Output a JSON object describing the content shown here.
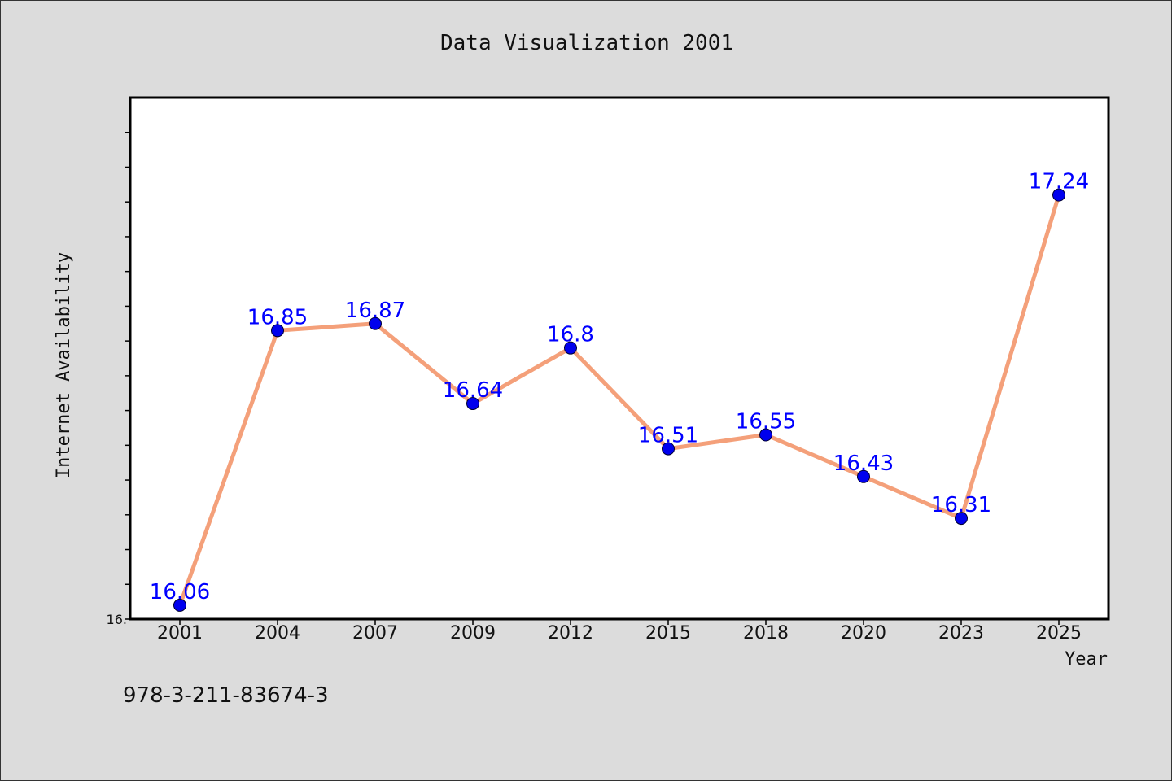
{
  "chart_data": {
    "type": "line",
    "title": "Data Visualization 2001",
    "xlabel": "Year",
    "ylabel": "Internet Availability",
    "categories": [
      "2001",
      "2004",
      "2007",
      "2009",
      "2012",
      "2015",
      "2018",
      "2020",
      "2023",
      "2025"
    ],
    "series": [
      {
        "values": [
          16.06,
          16.85,
          16.87,
          16.64,
          16.8,
          16.51,
          16.55,
          16.43,
          16.31,
          17.24
        ]
      }
    ],
    "data_labels": [
      "16.06",
      "16.85",
      "16.87",
      "16.64",
      "16.8",
      "16.51",
      "16.55",
      "16.43",
      "16.31",
      "17.24"
    ],
    "ylim": [
      16.02,
      17.52
    ],
    "yticks_labeled": [
      "16."
    ],
    "grid": false,
    "legend": "none",
    "colors": {
      "line": "#f4a07a",
      "marker": "#0000ee",
      "label": "#0000ff",
      "plot_background": "#ffffff",
      "page_background": "#dcdcdc"
    }
  },
  "footer_text": "978-3-211-83674-3"
}
